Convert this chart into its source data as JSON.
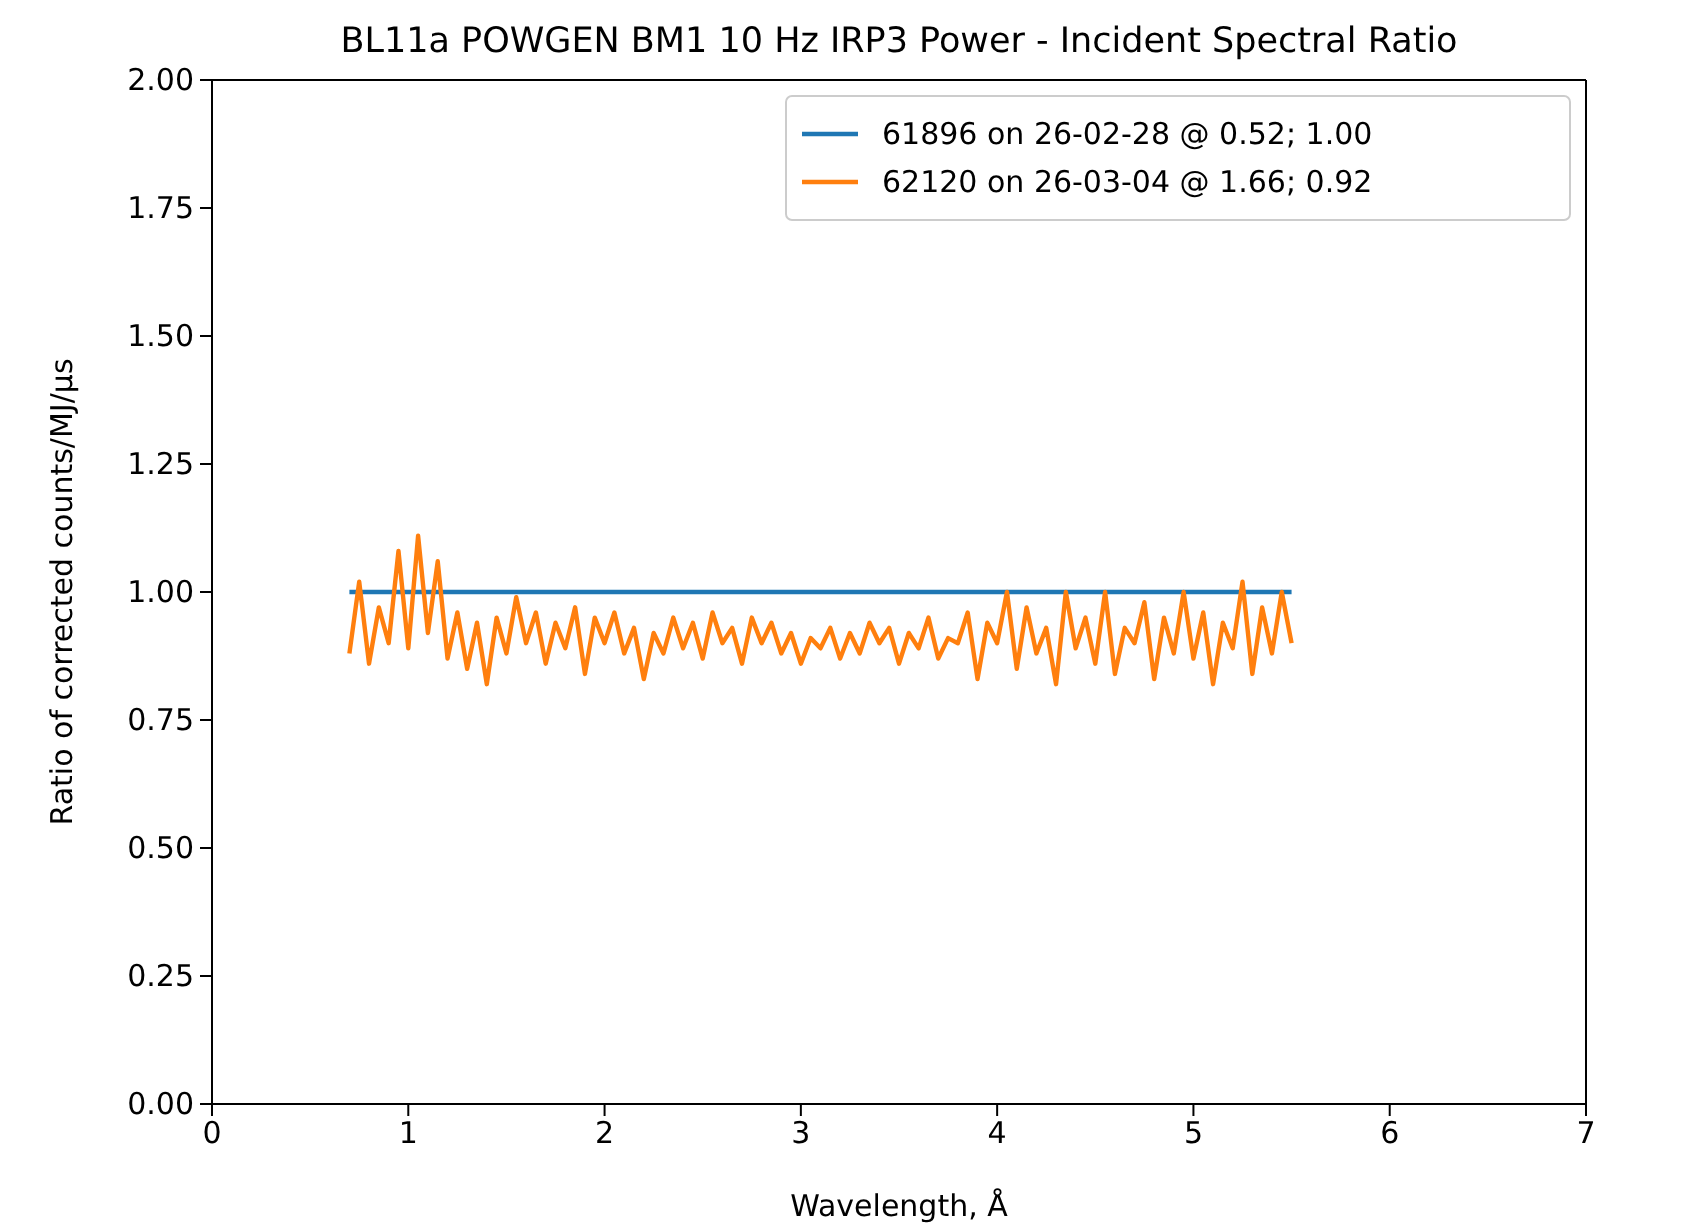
{
  "chart_data": {
    "type": "line",
    "title": "BL11a POWGEN BM1 10 Hz IRP3 Power - Incident Spectral Ratio",
    "xlabel": "Wavelength, Å",
    "ylabel": "Ratio of corrected counts/MJ/µs",
    "xlim": [
      0,
      7
    ],
    "xticks": [
      0,
      1,
      2,
      3,
      4,
      5,
      6,
      7
    ],
    "ylim": [
      0,
      2
    ],
    "yticks": [
      {
        "value": 0,
        "label": "0.00"
      },
      {
        "value": 0.25,
        "label": "0.25"
      },
      {
        "value": 0.5,
        "label": "0.50"
      },
      {
        "value": 0.75,
        "label": "0.75"
      },
      {
        "value": 1,
        "label": "1.00"
      },
      {
        "value": 1.25,
        "label": "1.25"
      },
      {
        "value": 1.5,
        "label": "1.50"
      },
      {
        "value": 1.75,
        "label": "1.75"
      },
      {
        "value": 2,
        "label": "2.00"
      }
    ],
    "grid": false,
    "legend": "top right",
    "series": [
      {
        "name": "61896 on 26-02-28 @ 0.52; 1.00",
        "color": "#1f77b4",
        "x": [
          0.7,
          5.5
        ],
        "values": [
          1.0,
          1.0
        ]
      },
      {
        "name": "62120 on 26-03-04 @ 1.66; 0.92",
        "color": "#ff7f0e",
        "x": [
          0.7,
          0.75,
          0.8,
          0.85,
          0.9,
          0.95,
          1.0,
          1.05,
          1.1,
          1.15,
          1.2,
          1.25,
          1.3,
          1.35,
          1.4,
          1.45,
          1.5,
          1.55,
          1.6,
          1.65,
          1.7,
          1.75,
          1.8,
          1.85,
          1.9,
          1.95,
          2.0,
          2.05,
          2.1,
          2.15,
          2.2,
          2.25,
          2.3,
          2.35,
          2.4,
          2.45,
          2.5,
          2.55,
          2.6,
          2.65,
          2.7,
          2.75,
          2.8,
          2.85,
          2.9,
          2.95,
          3.0,
          3.05,
          3.1,
          3.15,
          3.2,
          3.25,
          3.3,
          3.35,
          3.4,
          3.45,
          3.5,
          3.55,
          3.6,
          3.65,
          3.7,
          3.75,
          3.8,
          3.85,
          3.9,
          3.95,
          4.0,
          4.05,
          4.1,
          4.15,
          4.2,
          4.25,
          4.3,
          4.35,
          4.4,
          4.45,
          4.5,
          4.55,
          4.6,
          4.65,
          4.7,
          4.75,
          4.8,
          4.85,
          4.9,
          4.95,
          5.0,
          5.05,
          5.1,
          5.15,
          5.2,
          5.25,
          5.3,
          5.35,
          5.4,
          5.45,
          5.5
        ],
        "values": [
          0.88,
          1.02,
          0.86,
          0.97,
          0.9,
          1.08,
          0.89,
          1.11,
          0.92,
          1.06,
          0.87,
          0.96,
          0.85,
          0.94,
          0.82,
          0.95,
          0.88,
          0.99,
          0.9,
          0.96,
          0.86,
          0.94,
          0.89,
          0.97,
          0.84,
          0.95,
          0.9,
          0.96,
          0.88,
          0.93,
          0.83,
          0.92,
          0.88,
          0.95,
          0.89,
          0.94,
          0.87,
          0.96,
          0.9,
          0.93,
          0.86,
          0.95,
          0.9,
          0.94,
          0.88,
          0.92,
          0.86,
          0.91,
          0.89,
          0.93,
          0.87,
          0.92,
          0.88,
          0.94,
          0.9,
          0.93,
          0.86,
          0.92,
          0.89,
          0.95,
          0.87,
          0.91,
          0.9,
          0.96,
          0.83,
          0.94,
          0.9,
          1.0,
          0.85,
          0.97,
          0.88,
          0.93,
          0.82,
          1.0,
          0.89,
          0.95,
          0.86,
          1.0,
          0.84,
          0.93,
          0.9,
          0.98,
          0.83,
          0.95,
          0.88,
          1.0,
          0.87,
          0.96,
          0.82,
          0.94,
          0.89,
          1.02,
          0.84,
          0.97,
          0.88,
          1.0,
          0.9
        ]
      }
    ]
  }
}
